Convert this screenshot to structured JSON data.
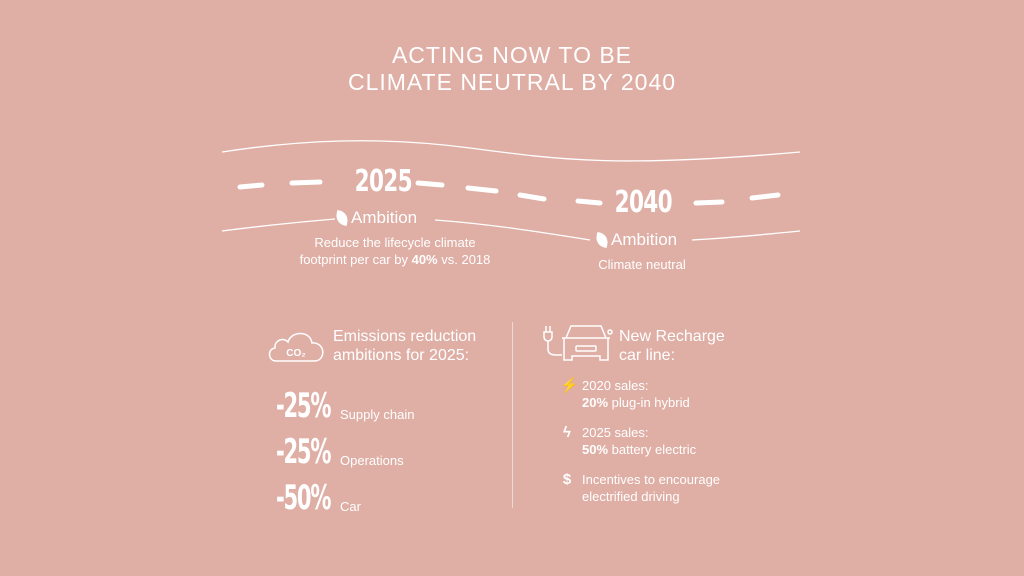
{
  "title": {
    "line1": "ACTING NOW TO BE",
    "line2": "CLIMATE NEUTRAL BY 2040"
  },
  "milestones": [
    {
      "year": "2025",
      "ambition": "Ambition",
      "desc_line1": "Reduce the lifecycle climate",
      "desc_pre": "footprint per car by ",
      "desc_bold": "40%",
      "desc_post": " vs. 2018"
    },
    {
      "year": "2040",
      "ambition": "Ambition",
      "desc": "Climate neutral"
    }
  ],
  "emissions": {
    "icon": "co2-cloud-icon",
    "icon_text": "CO₂",
    "header_line1": "Emissions reduction",
    "header_line2": "ambitions for 2025:",
    "items": [
      {
        "value": "-25%",
        "label": "Supply chain"
      },
      {
        "value": "-25%",
        "label": "Operations"
      },
      {
        "value": "-50%",
        "label": "Car"
      }
    ]
  },
  "recharge": {
    "icon": "electric-car-plug-icon",
    "header_line1": "New Recharge",
    "header_line2": "car line:",
    "items": [
      {
        "icon": "hybrid-bolt-icon",
        "line1": "2020 sales:",
        "bold": "20%",
        "rest": " plug-in hybrid"
      },
      {
        "icon": "bolt-icon",
        "line1": "2025 sales:",
        "bold": "50%",
        "rest": " battery electric"
      },
      {
        "icon": "dollar-icon",
        "line1": "Incentives to encourage",
        "line2": "electrified driving"
      }
    ]
  },
  "colors": {
    "background": "#dfaea5",
    "foreground": "#ffffff"
  }
}
